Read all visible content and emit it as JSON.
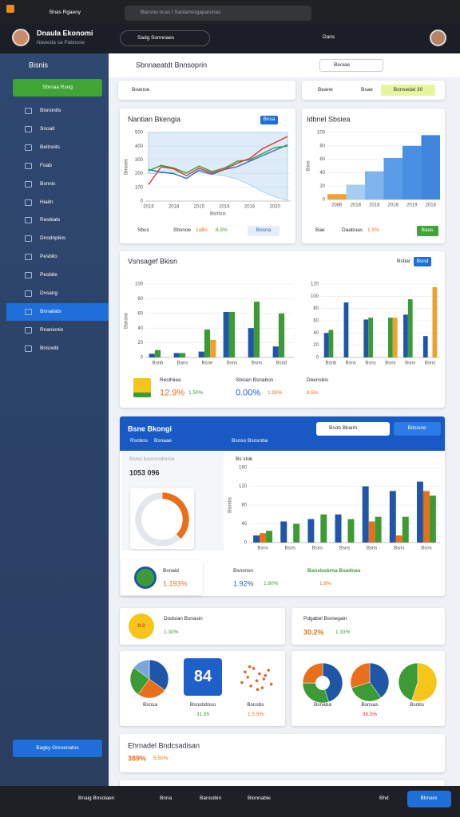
{
  "browser": {
    "tab": "Bnas Rgaeny",
    "address": "Bacsnu ocas l Saotansogaparonas"
  },
  "header": {
    "name": "Dnaula Ekonomi",
    "subtitle": "Naweda sa Pabnose",
    "search": "Sadg Sonnnaes",
    "account": "Dans"
  },
  "sidebar": {
    "title": "Bisnis",
    "button": "Sbrnaa Rsng",
    "items": [
      "Bisnonits",
      "Snoait",
      "Beitnoits",
      "Foab",
      "Bsnnis",
      "Hiaitn",
      "Resbiats",
      "Dnodnpikis",
      "Pesbito",
      "Pesbite",
      "Dvsang",
      "Bnnailats",
      "Rnanionio",
      "Bnsoobi"
    ],
    "active_item": 11,
    "footer_button": "Bagky Gmoenatos"
  },
  "topbar": {
    "title": "Sbnnaeatdt Bnnsoprin",
    "search": "Beoiae"
  },
  "filters": {
    "left": "Boanoe",
    "right_a": "Beane",
    "right_b": "Bsae",
    "badge": "Bonsedat 30"
  },
  "cards": {
    "trend": {
      "button": "Bnsa",
      "footer": [
        "Sbus",
        "Sbsnoe",
        "1aBs",
        "8.5%"
      ],
      "action": "Bosna"
    },
    "steps": {
      "footer": [
        "Bae",
        "Daabuas",
        "1.5%"
      ],
      "action": "Baas"
    },
    "bars": {
      "filter": "Bsbar",
      "button": "Bsnd",
      "stats": [
        [
          "Reslhiiee",
          "12.9%",
          "1.50%"
        ],
        [
          "Sbsian Bsnabon",
          "0.00%",
          "1.99%"
        ],
        [
          "Deensbis",
          "8.5%"
        ]
      ]
    },
    "stock": {
      "title": "Bsne Bkongi",
      "tabs": [
        "Rsnbos",
        "Bsnaae"
      ],
      "right_tabs": [
        "Bsnso",
        "Bsnsnba"
      ],
      "search": "Bsob Bkanh",
      "button": "Bdsisne",
      "label": "Bsnsi basnnsdnnsa",
      "value": "1053 096",
      "stats": [
        [
          "Bsnaid",
          "1.193%"
        ],
        [
          "Bsnsnsn",
          "1.92%",
          "1.80%"
        ],
        [
          "Bsnsbsbrna Bsadnas",
          "1.8%"
        ]
      ]
    },
    "row_left": {
      "badge": "0.3",
      "title": "Dodsian Bsnasin",
      "value": "1.30%"
    },
    "row_right": {
      "title": "Pdgabel Bsmegain",
      "value": "30.2%",
      "sub": "1.33%"
    },
    "pies_left": {
      "tile": "84",
      "captions": [
        [
          "Bsnsa"
        ],
        [
          "Bsnsbdnso",
          "31.95"
        ],
        [
          "Bsnsbs",
          "1.5.5%"
        ]
      ]
    },
    "pies_right": {
      "captions": [
        [
          "Bsnaba"
        ],
        [
          "Bsnsas",
          "38.5%"
        ],
        [
          "Bsnbs"
        ]
      ]
    },
    "bottom": {
      "title": "Ehrnadel Bndcsadisan",
      "value": "389%",
      "sub": "5.50%"
    }
  },
  "taskbar": {
    "items": [
      "Bnaig Bnsolaen",
      "Bnna",
      "Bansobin",
      "Bionnabie"
    ],
    "status": "Bhd",
    "button": "Bbnare"
  },
  "charts": {
    "trend": {
      "type": "line",
      "title": "Nantian Bkengia",
      "x_label": "Bsnbus",
      "y_label": "Bnsnes",
      "grid": true,
      "categories": [
        "2016",
        null,
        "2018",
        null,
        "2015",
        null,
        "2016",
        null,
        "2016",
        null,
        "2020",
        null
      ],
      "ylim": [
        0,
        500
      ],
      "yticks": [
        0,
        100,
        200,
        300,
        400,
        500
      ],
      "series": [
        {
          "color": "#9ec9ea",
          "area": true,
          "values": [
            200,
            205,
            210,
            200,
            210,
            195,
            185,
            160,
            120,
            70,
            30,
            5
          ]
        },
        {
          "color": "#2a6fc9",
          "values": [
            230,
            210,
            200,
            165,
            225,
            195,
            230,
            250,
            290,
            330,
            370,
            410
          ]
        },
        {
          "color": "#3d9b35",
          "values": [
            220,
            260,
            240,
            205,
            255,
            215,
            240,
            290,
            300,
            345,
            390,
            400
          ]
        },
        {
          "color": "#d9362b",
          "values": [
            120,
            250,
            235,
            185,
            240,
            205,
            230,
            275,
            310,
            380,
            425,
            470
          ]
        }
      ]
    },
    "steps": {
      "type": "bar",
      "title": "Idbnel Sbsiea",
      "y_label": "Bsns",
      "grid": true,
      "categories": [
        "2086",
        "2018",
        "2018",
        "2018",
        "2019",
        "2018"
      ],
      "values": [
        8,
        22,
        42,
        62,
        80,
        96
      ],
      "colors": [
        "#f0a030",
        "#a8cdf2",
        "#7fb4ee",
        "#5a9ce8",
        "#4a90e2",
        "#3f86dc"
      ],
      "ylim": [
        0,
        100
      ],
      "yticks": [
        0,
        20,
        40,
        60,
        80,
        100
      ]
    },
    "bars_left": {
      "type": "bar",
      "title": "Vsnsagef Bkisn",
      "y_label": "Bsnsno",
      "grid": true,
      "categories": [
        "Bsnb",
        "Bans",
        "Bsne",
        "Bsns",
        "Bsns",
        "Bsnd"
      ],
      "ylim": [
        0,
        100
      ],
      "yticks": [
        0,
        20,
        40,
        60,
        80,
        100
      ],
      "series": [
        {
          "color": "#1f56a8",
          "values": [
            5,
            6,
            8,
            62,
            40,
            15
          ]
        },
        {
          "color": "#3d9b35",
          "values": [
            10,
            6,
            38,
            62,
            76,
            60
          ]
        },
        {
          "color": "#f0a030",
          "values": [
            0,
            0,
            24,
            0,
            0,
            0
          ]
        }
      ]
    },
    "bars_right": {
      "type": "bar",
      "grid": true,
      "categories": [
        "Bsnb",
        "Bsns",
        "Bsns",
        "Bsns",
        "Bsns",
        "Bsns"
      ],
      "ylim": [
        0,
        120
      ],
      "yticks": [
        0,
        20,
        40,
        60,
        80,
        100,
        120
      ],
      "series": [
        {
          "color": "#1f56a8",
          "values": [
            40,
            90,
            62,
            0,
            70,
            35
          ]
        },
        {
          "color": "#3d9b35",
          "values": [
            45,
            0,
            65,
            65,
            95,
            0
          ]
        },
        {
          "color": "#f0a030",
          "values": [
            0,
            0,
            0,
            65,
            0,
            115
          ]
        }
      ]
    },
    "stock": {
      "type": "bar",
      "title": "Bs stok",
      "y_label": "Bsnsbs",
      "grid": true,
      "categories": [
        "Bsns",
        "Bsns",
        "Bsns",
        "Bsns",
        "Bsns",
        "Bsns",
        "Bsns"
      ],
      "ylim": [
        0,
        160
      ],
      "yticks": [
        0,
        40,
        80,
        120,
        160
      ],
      "series": [
        {
          "color": "#1f56a8",
          "values": [
            15,
            45,
            50,
            60,
            120,
            110,
            130
          ]
        },
        {
          "color": "#e8701a",
          "values": [
            20,
            0,
            0,
            0,
            45,
            15,
            110
          ]
        },
        {
          "color": "#3d9b35",
          "values": [
            25,
            40,
            60,
            50,
            55,
            55,
            100
          ]
        }
      ]
    },
    "donut": {
      "type": "pie",
      "values": [
        38,
        62
      ],
      "colors": [
        "#e8701a",
        "#e3e7ec"
      ],
      "hole": 0.75
    },
    "pie_a": {
      "type": "pie",
      "values": [
        35,
        25,
        25,
        15
      ],
      "colors": [
        "#1f56a8",
        "#e8701a",
        "#3d9b35",
        "#7aa6d8"
      ]
    },
    "scatter": {
      "type": "scatter",
      "color": "#d96a2a",
      "xlim": [
        0,
        100
      ],
      "ylim": [
        0,
        100
      ],
      "x": [
        10,
        18,
        25,
        33,
        40,
        48,
        55,
        62,
        70,
        78,
        85,
        30,
        50,
        66
      ],
      "y": [
        40,
        70,
        55,
        30,
        80,
        45,
        65,
        25,
        60,
        75,
        35,
        85,
        20,
        50
      ]
    },
    "pie_b": {
      "type": "pie",
      "values": [
        45,
        30,
        25
      ],
      "colors": [
        "#1f56a8",
        "#3d9b35",
        "#e8701a"
      ],
      "hole": 0.35
    },
    "pie_c": {
      "type": "pie",
      "values": [
        40,
        30,
        30
      ],
      "colors": [
        "#1f56a8",
        "#3d9b35",
        "#e8701a"
      ]
    },
    "pie_d": {
      "type": "pie",
      "values": [
        55,
        45
      ],
      "colors": [
        "#f5c518",
        "#3d9b35"
      ]
    }
  }
}
